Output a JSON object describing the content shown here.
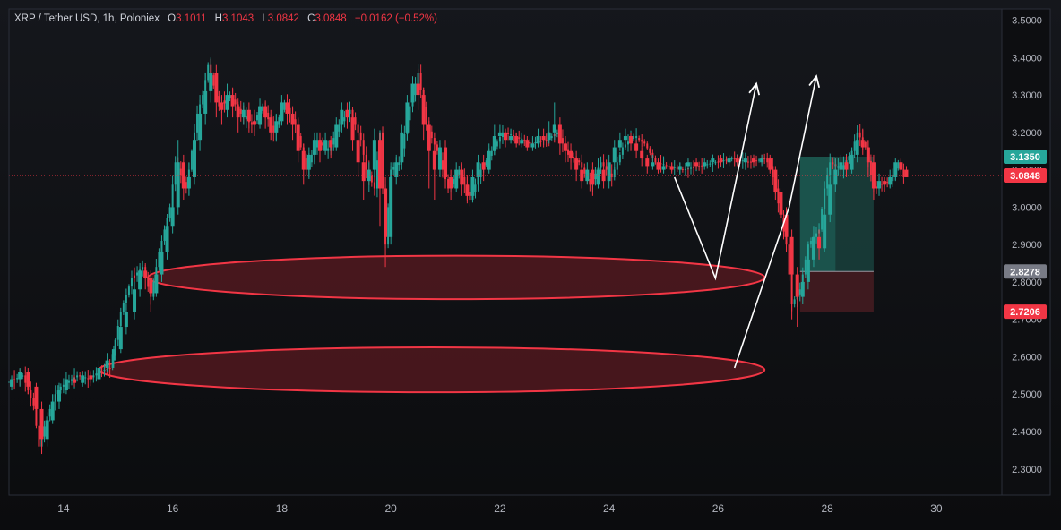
{
  "header": {
    "symbol": "XRP / Tether USD",
    "interval": "1h",
    "exchange": "Poloniex",
    "open_label": "O",
    "open": "3.1011",
    "high_label": "H",
    "high": "3.1043",
    "low_label": "L",
    "low": "3.0842",
    "close_label": "C",
    "close": "3.0848",
    "change": "−0.0162 (−0.52%)"
  },
  "colors": {
    "background": "#0d0e11",
    "up": "#26a69a",
    "down": "#f23645",
    "axis_text": "#b2b5be",
    "zone_stroke": "#f23645",
    "zone_fill": "#5a1a20",
    "profit_fill": "#1b4a44",
    "loss_fill": "#4a1d22",
    "arrow": "#ffffff"
  },
  "chart_data": {
    "type": "candlestick",
    "ylim": [
      2.23,
      3.53
    ],
    "xlim": [
      13,
      31.2
    ],
    "y_ticks": [
      "3.5000",
      "3.4000",
      "3.3000",
      "3.2000",
      "3.1000",
      "3.0000",
      "2.9000",
      "2.8000",
      "2.7000",
      "2.6000",
      "2.5000",
      "2.4000",
      "2.3000"
    ],
    "x_ticks": [
      "14",
      "16",
      "18",
      "20",
      "22",
      "24",
      "26",
      "28",
      "30"
    ],
    "grid": false,
    "price_path": [
      [
        13.0,
        2.53
      ],
      [
        13.3,
        2.55
      ],
      [
        13.5,
        2.47
      ],
      [
        13.6,
        2.36
      ],
      [
        13.75,
        2.44
      ],
      [
        13.9,
        2.5
      ],
      [
        14.0,
        2.52
      ],
      [
        14.3,
        2.55
      ],
      [
        14.5,
        2.54
      ],
      [
        14.7,
        2.56
      ],
      [
        14.9,
        2.57
      ],
      [
        15.1,
        2.72
      ],
      [
        15.3,
        2.81
      ],
      [
        15.5,
        2.84
      ],
      [
        15.65,
        2.76
      ],
      [
        15.8,
        2.88
      ],
      [
        16.0,
        3.0
      ],
      [
        16.1,
        3.12
      ],
      [
        16.3,
        3.05
      ],
      [
        16.5,
        3.25
      ],
      [
        16.6,
        3.3
      ],
      [
        16.7,
        3.38
      ],
      [
        16.9,
        3.27
      ],
      [
        17.1,
        3.3
      ],
      [
        17.3,
        3.25
      ],
      [
        17.5,
        3.22
      ],
      [
        17.7,
        3.27
      ],
      [
        17.9,
        3.2
      ],
      [
        18.1,
        3.28
      ],
      [
        18.3,
        3.22
      ],
      [
        18.5,
        3.1
      ],
      [
        18.7,
        3.18
      ],
      [
        18.9,
        3.15
      ],
      [
        19.1,
        3.22
      ],
      [
        19.3,
        3.26
      ],
      [
        19.5,
        3.18
      ],
      [
        19.6,
        3.1
      ],
      [
        19.75,
        3.05
      ],
      [
        19.85,
        3.2
      ],
      [
        19.95,
        2.9
      ],
      [
        20.05,
        3.1
      ],
      [
        20.2,
        3.12
      ],
      [
        20.4,
        3.27
      ],
      [
        20.55,
        3.36
      ],
      [
        20.7,
        3.22
      ],
      [
        20.9,
        3.15
      ],
      [
        21.1,
        3.05
      ],
      [
        21.3,
        3.1
      ],
      [
        21.5,
        3.02
      ],
      [
        21.7,
        3.1
      ],
      [
        21.9,
        3.15
      ],
      [
        22.1,
        3.2
      ],
      [
        22.3,
        3.19
      ],
      [
        22.6,
        3.17
      ],
      [
        22.9,
        3.18
      ],
      [
        23.1,
        3.2
      ],
      [
        23.3,
        3.14
      ],
      [
        23.5,
        3.12
      ],
      [
        23.7,
        3.06
      ],
      [
        23.9,
        3.12
      ],
      [
        24.1,
        3.08
      ],
      [
        24.3,
        3.16
      ],
      [
        24.5,
        3.19
      ],
      [
        24.7,
        3.17
      ],
      [
        24.9,
        3.12
      ],
      [
        25.1,
        3.11
      ],
      [
        25.4,
        3.1
      ],
      [
        25.7,
        3.11
      ],
      [
        26.0,
        3.12
      ],
      [
        26.3,
        3.13
      ],
      [
        26.6,
        3.12
      ],
      [
        26.9,
        3.13
      ],
      [
        27.0,
        3.11
      ],
      [
        27.1,
        3.05
      ],
      [
        27.2,
        2.97
      ],
      [
        27.3,
        2.9
      ],
      [
        27.4,
        2.74
      ],
      [
        27.55,
        2.78
      ],
      [
        27.7,
        2.9
      ],
      [
        27.9,
        2.94
      ],
      [
        28.0,
        3.05
      ],
      [
        28.1,
        3.12
      ],
      [
        28.3,
        3.1
      ],
      [
        28.5,
        3.15
      ],
      [
        28.6,
        3.2
      ],
      [
        28.75,
        3.16
      ],
      [
        28.9,
        3.05
      ],
      [
        29.0,
        3.06
      ],
      [
        29.2,
        3.07
      ],
      [
        29.35,
        3.12
      ],
      [
        29.45,
        3.08
      ]
    ],
    "candles": [
      [
        13.05,
        2.52,
        2.54,
        2.51,
        2.55
      ],
      [
        13.2,
        2.54,
        2.56,
        2.52,
        2.57
      ],
      [
        13.35,
        2.56,
        2.52,
        2.5,
        2.57
      ],
      [
        13.5,
        2.52,
        2.46,
        2.45,
        2.53
      ],
      [
        13.6,
        2.46,
        2.38,
        2.34,
        2.48
      ],
      [
        13.7,
        2.38,
        2.43,
        2.36,
        2.44
      ],
      [
        13.8,
        2.43,
        2.48,
        2.42,
        2.5
      ],
      [
        13.92,
        2.48,
        2.51,
        2.46,
        2.53
      ],
      [
        14.05,
        2.51,
        2.54,
        2.5,
        2.56
      ],
      [
        14.2,
        2.54,
        2.53,
        2.52,
        2.55
      ],
      [
        14.35,
        2.53,
        2.55,
        2.52,
        2.56
      ],
      [
        14.5,
        2.55,
        2.54,
        2.53,
        2.56
      ],
      [
        14.65,
        2.54,
        2.57,
        2.53,
        2.59
      ],
      [
        14.8,
        2.57,
        2.59,
        2.56,
        2.61
      ],
      [
        14.92,
        2.59,
        2.62,
        2.57,
        2.63
      ],
      [
        15.05,
        2.62,
        2.68,
        2.61,
        2.7
      ],
      [
        15.15,
        2.68,
        2.72,
        2.66,
        2.74
      ],
      [
        15.3,
        2.72,
        2.78,
        2.7,
        2.8
      ],
      [
        15.4,
        2.78,
        2.83,
        2.76,
        2.85
      ],
      [
        15.5,
        2.83,
        2.81,
        2.78,
        2.85
      ],
      [
        15.6,
        2.81,
        2.77,
        2.72,
        2.83
      ],
      [
        15.7,
        2.77,
        2.82,
        2.76,
        2.84
      ],
      [
        15.8,
        2.82,
        2.88,
        2.8,
        2.9
      ],
      [
        15.9,
        2.88,
        2.95,
        2.86,
        2.97
      ],
      [
        16.0,
        2.95,
        3.0,
        2.93,
        3.05
      ],
      [
        16.1,
        3.0,
        3.12,
        2.98,
        3.18
      ],
      [
        16.2,
        3.12,
        3.05,
        3.02,
        3.14
      ],
      [
        16.3,
        3.05,
        3.08,
        3.03,
        3.12
      ],
      [
        16.4,
        3.08,
        3.18,
        3.06,
        3.22
      ],
      [
        16.5,
        3.18,
        3.25,
        3.15,
        3.3
      ],
      [
        16.6,
        3.25,
        3.31,
        3.22,
        3.36
      ],
      [
        16.7,
        3.31,
        3.36,
        3.28,
        3.4
      ],
      [
        16.8,
        3.36,
        3.28,
        3.24,
        3.38
      ],
      [
        16.9,
        3.28,
        3.26,
        3.22,
        3.3
      ],
      [
        17.0,
        3.26,
        3.3,
        3.24,
        3.33
      ],
      [
        17.1,
        3.3,
        3.27,
        3.24,
        3.32
      ],
      [
        17.2,
        3.27,
        3.24,
        3.2,
        3.29
      ],
      [
        17.3,
        3.24,
        3.26,
        3.22,
        3.28
      ],
      [
        17.4,
        3.26,
        3.23,
        3.2,
        3.28
      ],
      [
        17.5,
        3.23,
        3.22,
        3.19,
        3.26
      ],
      [
        17.6,
        3.22,
        3.27,
        3.21,
        3.29
      ],
      [
        17.7,
        3.27,
        3.24,
        3.21,
        3.28
      ],
      [
        17.8,
        3.24,
        3.2,
        3.18,
        3.26
      ],
      [
        17.9,
        3.2,
        3.23,
        3.18,
        3.25
      ],
      [
        18.0,
        3.23,
        3.28,
        3.22,
        3.3
      ],
      [
        18.1,
        3.28,
        3.25,
        3.22,
        3.3
      ],
      [
        18.2,
        3.25,
        3.22,
        3.18,
        3.27
      ],
      [
        18.3,
        3.22,
        3.15,
        3.12,
        3.24
      ],
      [
        18.4,
        3.15,
        3.1,
        3.06,
        3.17
      ],
      [
        18.5,
        3.1,
        3.14,
        3.08,
        3.16
      ],
      [
        18.6,
        3.14,
        3.18,
        3.12,
        3.2
      ],
      [
        18.7,
        3.18,
        3.15,
        3.12,
        3.2
      ],
      [
        18.8,
        3.15,
        3.18,
        3.14,
        3.2
      ],
      [
        18.9,
        3.18,
        3.16,
        3.13,
        3.19
      ],
      [
        19.0,
        3.16,
        3.22,
        3.15,
        3.24
      ],
      [
        19.1,
        3.22,
        3.26,
        3.2,
        3.28
      ],
      [
        19.2,
        3.26,
        3.24,
        3.21,
        3.28
      ],
      [
        19.3,
        3.24,
        3.18,
        3.15,
        3.26
      ],
      [
        19.4,
        3.18,
        3.12,
        3.08,
        3.2
      ],
      [
        19.5,
        3.12,
        3.07,
        3.02,
        3.14
      ],
      [
        19.6,
        3.07,
        3.1,
        3.04,
        3.12
      ],
      [
        19.7,
        3.1,
        3.18,
        3.08,
        3.21
      ],
      [
        19.8,
        3.18,
        3.05,
        2.95,
        3.2
      ],
      [
        19.9,
        3.05,
        2.92,
        2.84,
        3.08
      ],
      [
        20.0,
        2.92,
        3.08,
        2.9,
        3.12
      ],
      [
        20.1,
        3.08,
        3.12,
        3.06,
        3.14
      ],
      [
        20.2,
        3.12,
        3.2,
        3.1,
        3.22
      ],
      [
        20.3,
        3.2,
        3.28,
        3.18,
        3.3
      ],
      [
        20.4,
        3.28,
        3.33,
        3.26,
        3.35
      ],
      [
        20.5,
        3.33,
        3.3,
        3.26,
        3.37
      ],
      [
        20.6,
        3.3,
        3.22,
        3.18,
        3.32
      ],
      [
        20.7,
        3.22,
        3.15,
        3.05,
        3.24
      ],
      [
        20.8,
        3.15,
        3.1,
        3.02,
        3.17
      ],
      [
        20.9,
        3.1,
        3.16,
        3.08,
        3.18
      ],
      [
        21.0,
        3.16,
        3.08,
        3.05,
        3.18
      ],
      [
        21.1,
        3.08,
        3.05,
        3.02,
        3.1
      ],
      [
        21.2,
        3.05,
        3.1,
        3.04,
        3.12
      ],
      [
        21.3,
        3.1,
        3.06,
        3.03,
        3.12
      ],
      [
        21.4,
        3.06,
        3.03,
        3.01,
        3.08
      ],
      [
        21.5,
        3.03,
        3.08,
        3.02,
        3.1
      ],
      [
        21.6,
        3.08,
        3.12,
        3.06,
        3.14
      ],
      [
        21.7,
        3.12,
        3.1,
        3.07,
        3.14
      ],
      [
        21.8,
        3.1,
        3.15,
        3.09,
        3.17
      ],
      [
        21.9,
        3.15,
        3.19,
        3.14,
        3.22
      ],
      [
        22.0,
        3.19,
        3.2,
        3.17,
        3.22
      ],
      [
        22.1,
        3.2,
        3.18,
        3.16,
        3.21
      ],
      [
        22.2,
        3.18,
        3.19,
        3.17,
        3.21
      ],
      [
        22.3,
        3.19,
        3.17,
        3.16,
        3.2
      ],
      [
        22.4,
        3.17,
        3.18,
        3.16,
        3.2
      ],
      [
        22.5,
        3.18,
        3.16,
        3.15,
        3.19
      ],
      [
        22.6,
        3.16,
        3.17,
        3.15,
        3.19
      ],
      [
        22.7,
        3.17,
        3.19,
        3.16,
        3.21
      ],
      [
        22.8,
        3.19,
        3.18,
        3.16,
        3.21
      ],
      [
        22.9,
        3.18,
        3.2,
        3.17,
        3.23
      ],
      [
        23.0,
        3.2,
        3.22,
        3.18,
        3.28
      ],
      [
        23.1,
        3.22,
        3.17,
        3.14,
        3.24
      ],
      [
        23.2,
        3.17,
        3.15,
        3.12,
        3.19
      ],
      [
        23.3,
        3.15,
        3.13,
        3.1,
        3.17
      ],
      [
        23.4,
        3.13,
        3.1,
        3.07,
        3.15
      ],
      [
        23.5,
        3.1,
        3.07,
        3.05,
        3.12
      ],
      [
        23.6,
        3.07,
        3.1,
        3.06,
        3.12
      ],
      [
        23.7,
        3.1,
        3.06,
        3.03,
        3.12
      ],
      [
        23.8,
        3.06,
        3.1,
        3.05,
        3.13
      ],
      [
        23.9,
        3.1,
        3.07,
        3.05,
        3.12
      ],
      [
        24.0,
        3.07,
        3.12,
        3.05,
        3.14
      ],
      [
        24.1,
        3.12,
        3.16,
        3.1,
        3.18
      ],
      [
        24.2,
        3.16,
        3.18,
        3.15,
        3.2
      ],
      [
        24.3,
        3.18,
        3.19,
        3.17,
        3.21
      ],
      [
        24.4,
        3.19,
        3.17,
        3.15,
        3.2
      ],
      [
        24.5,
        3.17,
        3.15,
        3.13,
        3.18
      ],
      [
        24.6,
        3.15,
        3.13,
        3.11,
        3.16
      ],
      [
        24.7,
        3.13,
        3.11,
        3.09,
        3.14
      ],
      [
        24.8,
        3.11,
        3.12,
        3.1,
        3.14
      ],
      [
        24.9,
        3.12,
        3.1,
        3.09,
        3.13
      ],
      [
        25.0,
        3.1,
        3.11,
        3.09,
        3.13
      ],
      [
        25.15,
        3.11,
        3.1,
        3.09,
        3.12
      ],
      [
        25.3,
        3.1,
        3.11,
        3.09,
        3.12
      ],
      [
        25.45,
        3.11,
        3.12,
        3.1,
        3.13
      ],
      [
        25.6,
        3.12,
        3.11,
        3.1,
        3.13
      ],
      [
        25.75,
        3.11,
        3.12,
        3.1,
        3.13
      ],
      [
        25.9,
        3.12,
        3.13,
        3.11,
        3.14
      ],
      [
        26.05,
        3.13,
        3.12,
        3.11,
        3.14
      ],
      [
        26.2,
        3.12,
        3.13,
        3.11,
        3.14
      ],
      [
        26.35,
        3.13,
        3.12,
        3.11,
        3.14
      ],
      [
        26.5,
        3.12,
        3.13,
        3.11,
        3.14
      ],
      [
        26.65,
        3.13,
        3.12,
        3.11,
        3.14
      ],
      [
        26.8,
        3.12,
        3.13,
        3.11,
        3.14
      ],
      [
        26.95,
        3.13,
        3.1,
        3.09,
        3.14
      ],
      [
        27.05,
        3.1,
        3.04,
        3.02,
        3.11
      ],
      [
        27.15,
        3.04,
        2.98,
        2.96,
        3.05
      ],
      [
        27.25,
        2.98,
        2.92,
        2.9,
        3.0
      ],
      [
        27.35,
        2.92,
        2.82,
        2.7,
        2.94
      ],
      [
        27.45,
        2.82,
        2.76,
        2.68,
        2.84
      ],
      [
        27.55,
        2.76,
        2.8,
        2.74,
        2.82
      ],
      [
        27.65,
        2.8,
        2.86,
        2.78,
        2.88
      ],
      [
        27.75,
        2.86,
        2.92,
        2.84,
        2.95
      ],
      [
        27.85,
        2.92,
        2.89,
        2.86,
        2.94
      ],
      [
        27.95,
        2.89,
        2.98,
        2.88,
        3.0
      ],
      [
        28.05,
        2.98,
        3.06,
        2.96,
        3.08
      ],
      [
        28.15,
        3.06,
        3.1,
        3.04,
        3.13
      ],
      [
        28.25,
        3.1,
        3.12,
        3.08,
        3.14
      ],
      [
        28.35,
        3.12,
        3.1,
        3.08,
        3.14
      ],
      [
        28.45,
        3.1,
        3.14,
        3.09,
        3.16
      ],
      [
        28.55,
        3.14,
        3.18,
        3.12,
        3.2
      ],
      [
        28.65,
        3.18,
        3.16,
        3.14,
        3.21
      ],
      [
        28.75,
        3.16,
        3.12,
        3.08,
        3.18
      ],
      [
        28.85,
        3.12,
        3.05,
        3.02,
        3.14
      ],
      [
        28.95,
        3.05,
        3.07,
        3.03,
        3.09
      ],
      [
        29.05,
        3.07,
        3.06,
        3.04,
        3.08
      ],
      [
        29.15,
        3.06,
        3.08,
        3.05,
        3.1
      ],
      [
        29.25,
        3.08,
        3.12,
        3.07,
        3.13
      ],
      [
        29.35,
        3.12,
        3.1,
        3.08,
        3.13
      ],
      [
        29.45,
        3.1,
        3.08,
        3.08,
        3.11
      ]
    ],
    "zones": [
      {
        "x0": 15.55,
        "x1": 26.85,
        "y": 2.812,
        "ry": 0.058
      },
      {
        "x0": 14.65,
        "x1": 26.85,
        "y": 2.565,
        "ry": 0.06
      }
    ],
    "arrows": [
      {
        "points": [
          [
            25.2,
            3.08
          ],
          [
            25.95,
            2.81
          ],
          [
            26.7,
            3.33
          ]
        ]
      },
      {
        "points": [
          [
            26.3,
            2.57
          ],
          [
            27.3,
            3.0
          ],
          [
            27.8,
            3.35
          ]
        ]
      }
    ],
    "position": {
      "x0": 27.5,
      "x1": 28.85,
      "entry": 2.8278,
      "target": 3.135,
      "stop": 2.7206,
      "inner_x1": 28.15
    },
    "last_price": 3.0848,
    "price_labels": [
      {
        "value": 3.135,
        "text": "3.1350",
        "color": "#26a69a"
      },
      {
        "value": 3.0848,
        "text": "3.0848",
        "color": "#f23645"
      },
      {
        "value": 2.8278,
        "text": "2.8278",
        "color": "#787b86"
      },
      {
        "value": 2.7206,
        "text": "2.7206",
        "color": "#f23645"
      }
    ]
  }
}
